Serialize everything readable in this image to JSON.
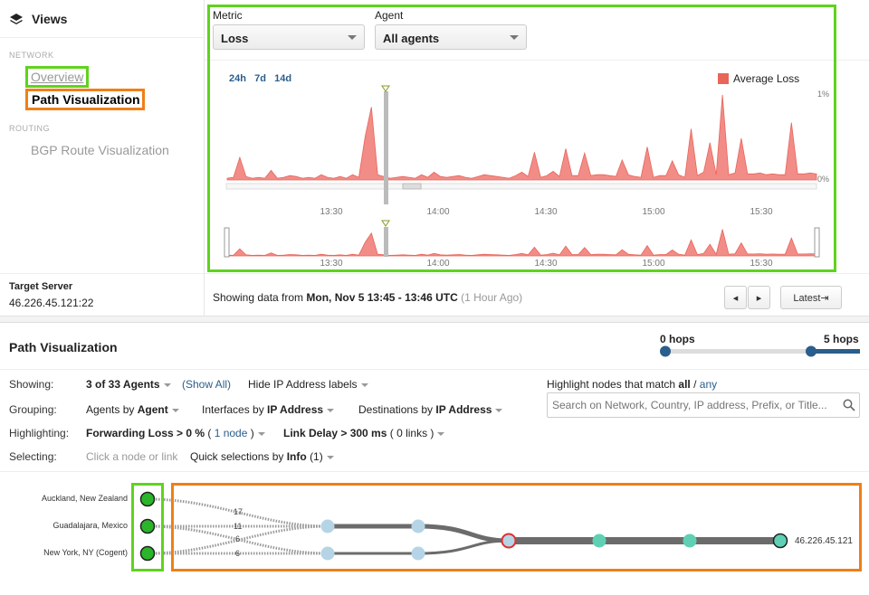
{
  "sidebar": {
    "title": "Views",
    "network_section": "NETWORK",
    "items": [
      {
        "label": "Overview"
      },
      {
        "label": "Path Visualization"
      }
    ],
    "routing_section": "ROUTING",
    "routing_items": [
      {
        "label": "BGP Route Visualization"
      }
    ],
    "target_label": "Target Server",
    "target_value": "46.226.45.121:22"
  },
  "filters": {
    "metric_label": "Metric",
    "metric_value": "Loss",
    "agent_label": "Agent",
    "agent_value": "All agents"
  },
  "chart_controls": {
    "ranges": [
      "24h",
      "7d",
      "14d"
    ],
    "legend": "Average Loss",
    "y_top": "1%",
    "y_bottom": "0%",
    "x_ticks": [
      "13:30",
      "14:00",
      "14:30",
      "15:00",
      "15:30"
    ]
  },
  "chart_data": {
    "type": "area",
    "title": "",
    "xlabel": "",
    "ylabel": "",
    "series": [
      {
        "name": "Average Loss",
        "color": "#f28c87",
        "values": [
          0.02,
          0.03,
          0.26,
          0.04,
          0.02,
          0.03,
          0.02,
          0.11,
          0.02,
          0.03,
          0.05,
          0.04,
          0.02,
          0.03,
          0.02,
          0.06,
          0.03,
          0.02,
          0.04,
          0.02,
          0.06,
          0.03,
          0.5,
          0.84,
          0.06,
          0.04,
          0.02,
          0.03,
          0.04,
          0.03,
          0.02,
          0.06,
          0.03,
          0.09,
          0.04,
          0.03,
          0.04,
          0.05,
          0.03,
          0.02,
          0.04,
          0.06,
          0.05,
          0.04,
          0.03,
          0.02,
          0.05,
          0.09,
          0.04,
          0.32,
          0.03,
          0.05,
          0.1,
          0.04,
          0.36,
          0.05,
          0.05,
          0.31,
          0.05,
          0.06,
          0.06,
          0.05,
          0.04,
          0.23,
          0.06,
          0.04,
          0.03,
          0.38,
          0.03,
          0.05,
          0.05,
          0.22,
          0.06,
          0.03,
          0.59,
          0.05,
          0.09,
          0.43,
          0.06,
          0.98,
          0.06,
          0.08,
          0.48,
          0.07,
          0.07,
          0.08,
          0.06,
          0.07,
          0.06,
          0.06,
          0.66,
          0.07,
          0.07,
          0.08,
          0.07
        ]
      }
    ],
    "ylim": [
      0,
      1
    ],
    "x_ticks": [
      "13:30",
      "14:00",
      "14:30",
      "15:00",
      "15:30"
    ],
    "legend_position": "top-right",
    "grid": false
  },
  "time_info": {
    "prefix": "Showing data from ",
    "range": "Mon, Nov 5 13:45 - 13:46 UTC",
    "ago": "(1 Hour Ago)",
    "latest_button": "Latest"
  },
  "path_vis": {
    "title": "Path Visualization",
    "hops_min": "0 hops",
    "hops_max": "5 hops",
    "hops_slider": {
      "min": 0,
      "max": 5,
      "lower": 0,
      "upper": 5
    },
    "showing_label": "Showing:",
    "showing_value": "3 of 33 Agents",
    "show_all": "(Show All)",
    "hide_ip": "Hide IP Address labels",
    "grouping_label": "Grouping:",
    "group_agents_pre": "Agents by ",
    "group_agents_b": "Agent",
    "group_if_pre": "Interfaces by ",
    "group_if_b": "IP Address",
    "group_dest_pre": "Destinations by ",
    "group_dest_b": "IP Address",
    "highlighting_label": "Highlighting:",
    "fwd_loss": "Forwarding Loss > 0 %",
    "fwd_loss_count": "1 node",
    "link_delay": "Link Delay > 300 ms",
    "link_delay_count": "0 links",
    "selecting_label": "Selecting:",
    "click_hint": "Click a node or link",
    "quick_pre": "Quick selections by ",
    "quick_b": "Info",
    "quick_count": "(1)",
    "highlight_match_pre": "Highlight nodes that match ",
    "highlight_all": "all",
    "highlight_sep": " / ",
    "highlight_any": "any",
    "search_placeholder": "Search on Network, Country, IP address, Prefix, or Title...",
    "agents": [
      "Auckland, New Zealand",
      "Guadalajara, Mexico",
      "New York, NY (Cogent)"
    ],
    "link_counts": [
      "17",
      "11",
      "6",
      "6"
    ],
    "destination": "46.226.45.121"
  },
  "colors": {
    "accent": "#2a5e8c",
    "agent_green": "#2bb52b",
    "node_blue": "#b5d4e6",
    "node_teal": "#5fd0b4",
    "loss_red": "#e03030"
  }
}
